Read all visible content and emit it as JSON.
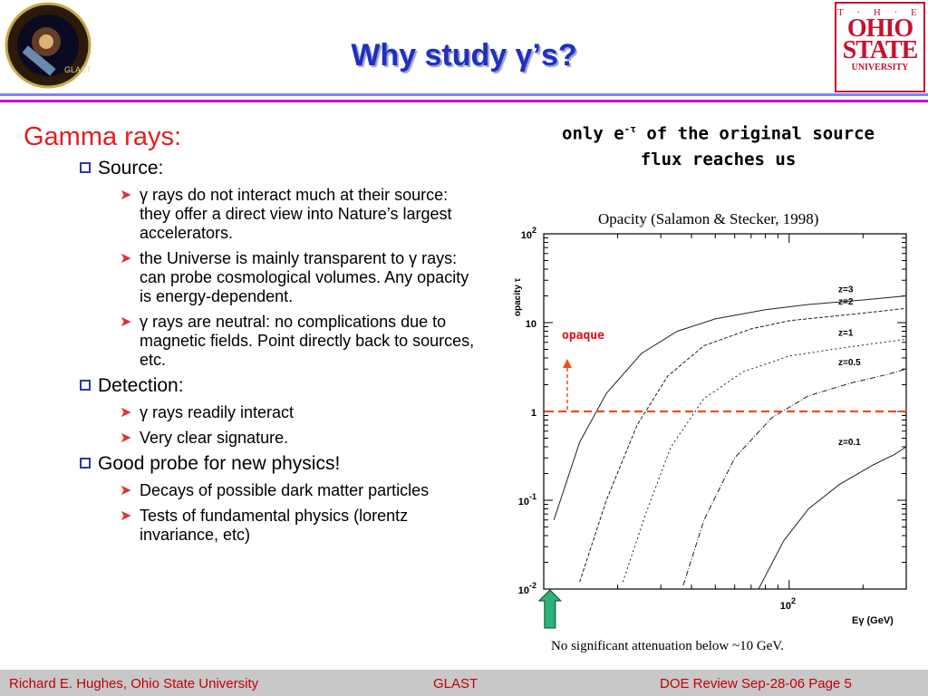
{
  "header": {
    "title": "Why study γ’s?",
    "osu_logo": {
      "line1": "T · H · E",
      "line2": "OHIO",
      "line3": "STATE",
      "line4": "UNIVERSITY"
    },
    "glast_logo_text": "GLAST"
  },
  "left": {
    "heading": "Gamma rays:",
    "sections": [
      {
        "label": "Source:",
        "items": [
          " γ rays do not interact much at their source: they offer a direct view into Nature’s largest accelerators.",
          "the Universe is mainly transparent to γ rays: can probe cosmological volumes.  Any opacity is energy-dependent.",
          "γ rays are neutral: no complications due to magnetic fields.  Point directly back to sources, etc."
        ]
      },
      {
        "label": "Detection:",
        "items": [
          "γ rays readily interact",
          "Very  clear signature."
        ]
      },
      {
        "label": "Good probe for new physics!",
        "items": [
          "Decays of possible dark matter particles",
          "Tests of fundamental physics (lorentz invariance, etc)"
        ]
      }
    ]
  },
  "note": {
    "prefix": "only e",
    "sup": "-τ",
    "suffix": " of the original source",
    "line2": "flux reaches us"
  },
  "figure": {
    "caption": "Opacity (Salamon & Stecker, 1998)",
    "bottom_note": "No significant attenuation below ~10 GeV.",
    "opaque_label": "opaque",
    "accent": "#e85020",
    "arrow_color": "#2db37a"
  },
  "chart_data": {
    "type": "line",
    "xlabel": "Eγ (GeV)",
    "ylabel": "opacity τ",
    "yscale": "log",
    "xscale": "log",
    "ylim": [
      0.01,
      100
    ],
    "xlim": [
      10,
      300
    ],
    "ytick_labels": [
      "10^2",
      "10",
      "1",
      "10^-1",
      "10^-2"
    ],
    "xtick_labels": [
      "10^2"
    ],
    "threshold_tau": 1,
    "series": [
      {
        "name": "z=3",
        "x": [
          11,
          14,
          18,
          25,
          35,
          50,
          80,
          120,
          200,
          300
        ],
        "y": [
          0.06,
          0.45,
          1.6,
          4.5,
          8,
          11,
          14,
          16,
          18,
          20
        ]
      },
      {
        "name": "z=2",
        "x": [
          14,
          18,
          24,
          32,
          45,
          70,
          100,
          160,
          240,
          300
        ],
        "y": [
          0.012,
          0.1,
          0.7,
          2.5,
          5.5,
          8.5,
          10.5,
          12,
          13.5,
          14.5
        ]
      },
      {
        "name": "z=1",
        "x": [
          21,
          26,
          33,
          45,
          65,
          100,
          150,
          220,
          300
        ],
        "y": [
          0.012,
          0.07,
          0.4,
          1.4,
          2.8,
          4.2,
          5,
          5.8,
          6.5
        ]
      },
      {
        "name": "z=0.5",
        "x": [
          37,
          45,
          60,
          85,
          120,
          180,
          250,
          300
        ],
        "y": [
          0.011,
          0.06,
          0.3,
          0.85,
          1.5,
          2.1,
          2.6,
          3
        ]
      },
      {
        "name": "z=0.1",
        "x": [
          75,
          95,
          120,
          160,
          220,
          270,
          300
        ],
        "y": [
          0.01,
          0.035,
          0.08,
          0.15,
          0.25,
          0.33,
          0.4
        ]
      }
    ]
  },
  "footer": {
    "left": "Richard E. Hughes, Ohio State University",
    "center": "GLAST",
    "right": "DOE Review Sep-28-06   Page   5"
  }
}
